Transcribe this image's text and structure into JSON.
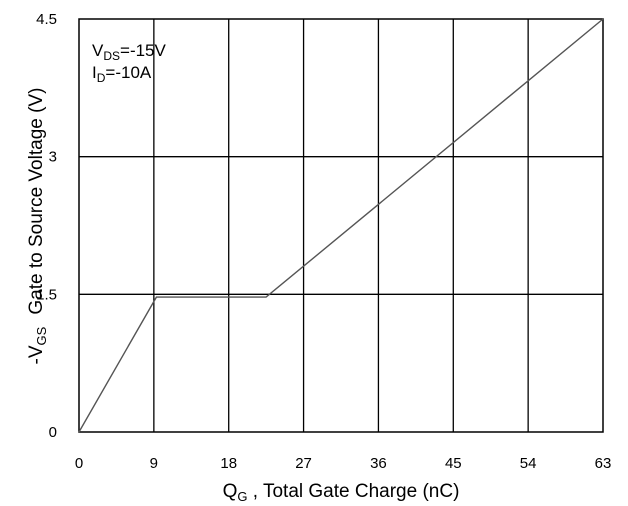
{
  "chart_data": {
    "type": "line",
    "title": "",
    "xlabel_main": "Q",
    "xlabel_sub": "G",
    "xlabel_rest": " , Total Gate Charge (nC)",
    "ylabel_prefix": "-V",
    "ylabel_sub": "GS",
    "ylabel_rest": "Gate to Source Voltage (V)",
    "xlim": [
      0,
      63
    ],
    "ylim": [
      0,
      4.5
    ],
    "xticks": [
      0,
      9,
      18,
      27,
      36,
      45,
      54,
      63
    ],
    "xtick_labels": [
      "0",
      "9",
      "18",
      "27",
      "36",
      "45",
      "54",
      "63"
    ],
    "yticks": [
      0,
      1.5,
      3,
      4.5
    ],
    "ytick_labels": [
      "0",
      "1.5",
      "3",
      "4.5"
    ],
    "grid": true,
    "annotations": [
      {
        "main": "V",
        "sub": "DS",
        "rest": "=-15V"
      },
      {
        "main": "I",
        "sub": "D",
        "rest": "=-10A"
      }
    ],
    "series": [
      {
        "x": [
          0,
          9.3,
          22.5,
          63
        ],
        "y": [
          0,
          1.47,
          1.47,
          4.5
        ]
      }
    ],
    "colors": {
      "line": "#555555",
      "grid": "#000000",
      "frame": "#000000"
    }
  }
}
